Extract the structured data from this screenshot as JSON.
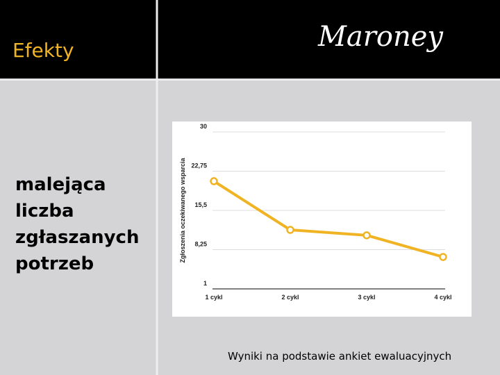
{
  "header": {
    "title": "Efekty",
    "logo": "Maroney"
  },
  "body": {
    "lines": [
      "malejąca",
      "liczba",
      "zgłaszanych",
      "potrzeb"
    ]
  },
  "caption": "Wyniki na podstawie ankiet ewaluacyjnych",
  "chart_data": {
    "type": "line",
    "y_label": "Zgłoszenia oczekiwanego wsparcia",
    "categories": [
      "1 cykl",
      "2 cykl",
      "3 cykl",
      "4 cykl"
    ],
    "values": [
      20.9,
      11.9,
      10.9,
      6.9
    ],
    "color": "#f0b323",
    "ylim": [
      1,
      30
    ],
    "yticks": [
      1,
      {
        "value": 8.25,
        "label": "8,25"
      },
      {
        "value": 15.5,
        "label": "15,5"
      },
      {
        "value": 22.75,
        "label": "22,75"
      },
      30
    ],
    "grid": true
  }
}
